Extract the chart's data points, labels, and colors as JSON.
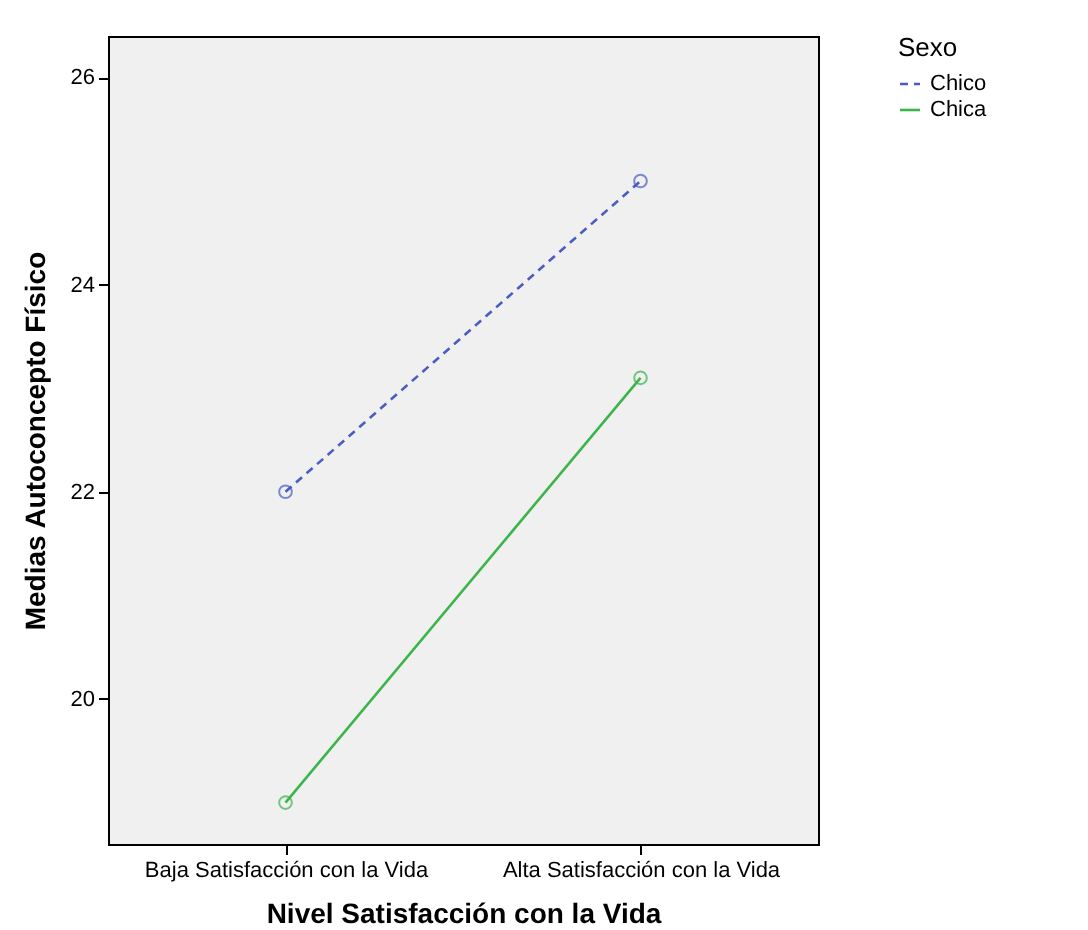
{
  "chart_data": {
    "type": "line",
    "xlabel": "Nivel Satisfacción con la Vida",
    "ylabel": "Medias Autoconcepto Físico",
    "legend_title": "Sexo",
    "categories": [
      "Baja Satisfacción con la Vida",
      "Alta Satisfacción con la Vida"
    ],
    "series": [
      {
        "name": "Chico",
        "color": "#4a5cc2",
        "line_style": "dashed",
        "values": [
          22.0,
          25.0
        ]
      },
      {
        "name": "Chica",
        "color": "#3cb44a",
        "line_style": "solid",
        "values": [
          19.0,
          23.1
        ]
      }
    ],
    "ylim": [
      18.6,
      26.4
    ],
    "yticks": [
      20,
      22,
      24,
      26
    ],
    "marker": "circle",
    "legend": "top right",
    "grid": false
  }
}
